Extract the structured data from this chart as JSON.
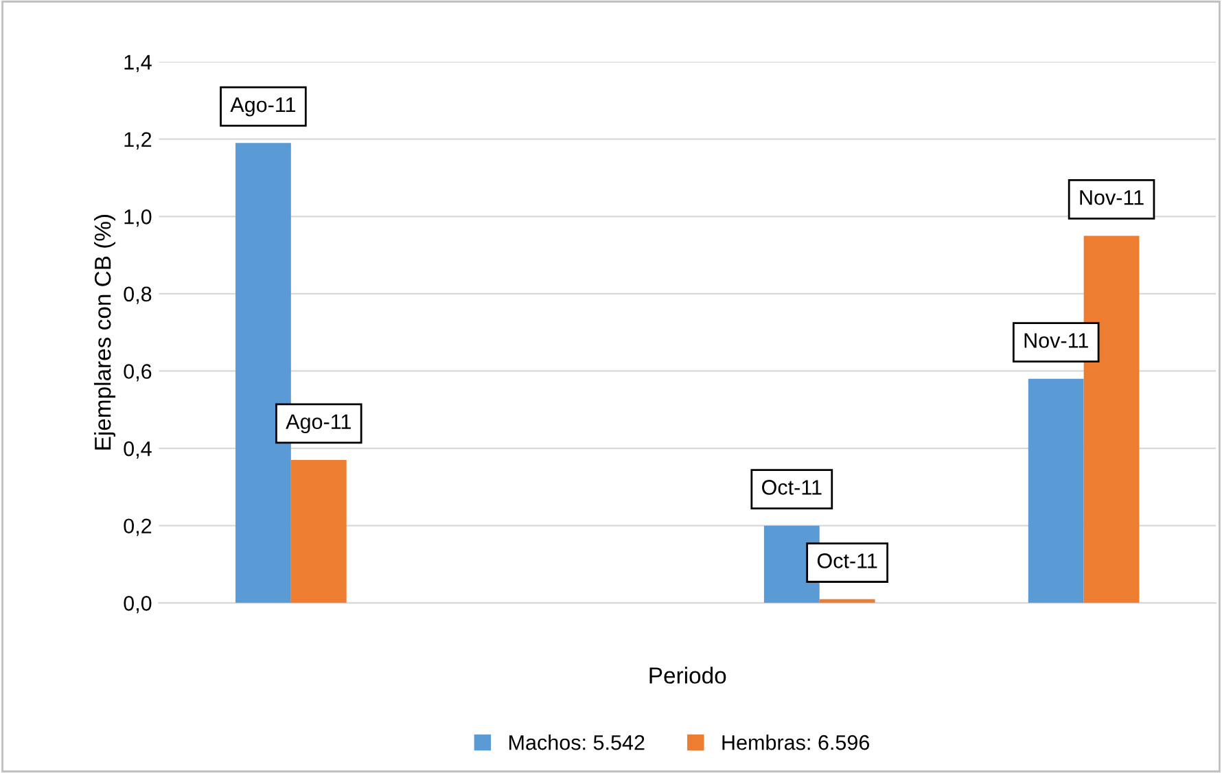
{
  "chart_data": {
    "type": "bar",
    "xlabel": "Periodo",
    "ylabel": "Ejemplares con CB (%)",
    "categories": [
      null,
      null,
      null,
      null
    ],
    "series": [
      {
        "name": "Machos: 5.542",
        "color": "#5b9bd5",
        "values": [
          1.19,
          null,
          0.2,
          0.58
        ],
        "value_labels": [
          "Ago-11",
          null,
          "Oct-11",
          "Nov-11"
        ]
      },
      {
        "name": "Hembras: 6.596",
        "color": "#ed7d31",
        "values": [
          0.37,
          null,
          0.01,
          0.95
        ],
        "value_labels": [
          "Ago-11",
          null,
          "Oct-11",
          "Nov-11"
        ]
      }
    ],
    "ylim": [
      0,
      1.4
    ],
    "yticks": [
      {
        "value": 0,
        "label": "0,0"
      },
      {
        "value": 0.2,
        "label": "0,2"
      },
      {
        "value": 0.4,
        "label": "0,4"
      },
      {
        "value": 0.6,
        "label": "0,6"
      },
      {
        "value": 0.8,
        "label": "0,8"
      },
      {
        "value": 1.0,
        "label": "1,0"
      },
      {
        "value": 1.2,
        "label": "1,2"
      },
      {
        "value": 1.4,
        "label": "1,4"
      }
    ],
    "grid": "y",
    "legend": "bottom"
  }
}
